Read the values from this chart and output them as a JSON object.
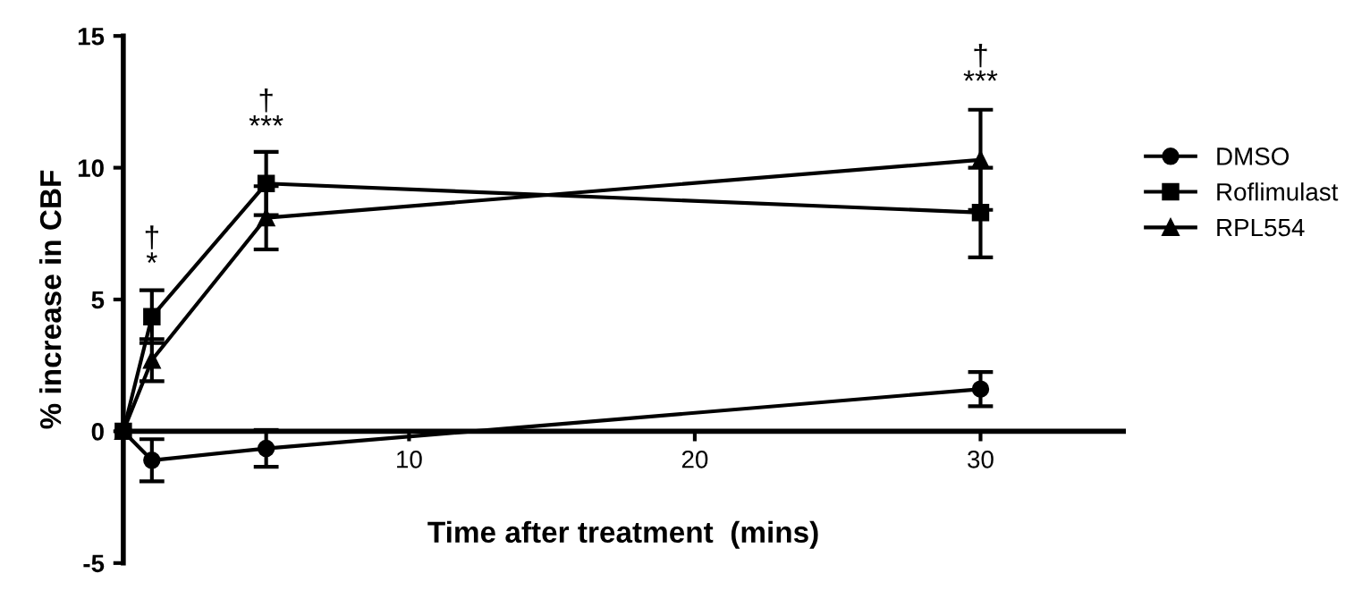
{
  "chart_data": {
    "type": "line",
    "xlabel": "Time after treatment  (mins)",
    "ylabel": "% increase in CBF",
    "x": [
      0,
      1,
      5,
      30
    ],
    "xlim": [
      0,
      35
    ],
    "xticks": [
      10,
      20,
      30
    ],
    "ylim": [
      -5,
      15
    ],
    "yticks": [
      -5,
      0,
      5,
      10,
      15
    ],
    "grid": false,
    "legend": "right",
    "line_style": "solid",
    "series": [
      {
        "name": "DMSO",
        "color": "#000000",
        "marker": "circle",
        "values": [
          0,
          -1.1,
          -0.65,
          1.6
        ],
        "errors": [
          null,
          0.8,
          0.7,
          0.65
        ]
      },
      {
        "name": "Roflimulast",
        "color": "#000000",
        "marker": "square",
        "values": [
          0,
          4.35,
          9.4,
          8.3
        ],
        "errors": [
          null,
          1.0,
          1.2,
          1.7
        ]
      },
      {
        "name": "RPL554",
        "color": "#000000",
        "marker": "triangle",
        "values": [
          0,
          2.7,
          8.1,
          10.3
        ],
        "errors": [
          null,
          0.8,
          1.2,
          1.9
        ]
      }
    ],
    "annotations": [
      {
        "text": "†\n*",
        "x": 1,
        "y": 5.4
      },
      {
        "text": "†\n***",
        "x": 5,
        "y": 10.6
      },
      {
        "text": "†\n***",
        "x": 30,
        "y": 12.3
      }
    ]
  }
}
